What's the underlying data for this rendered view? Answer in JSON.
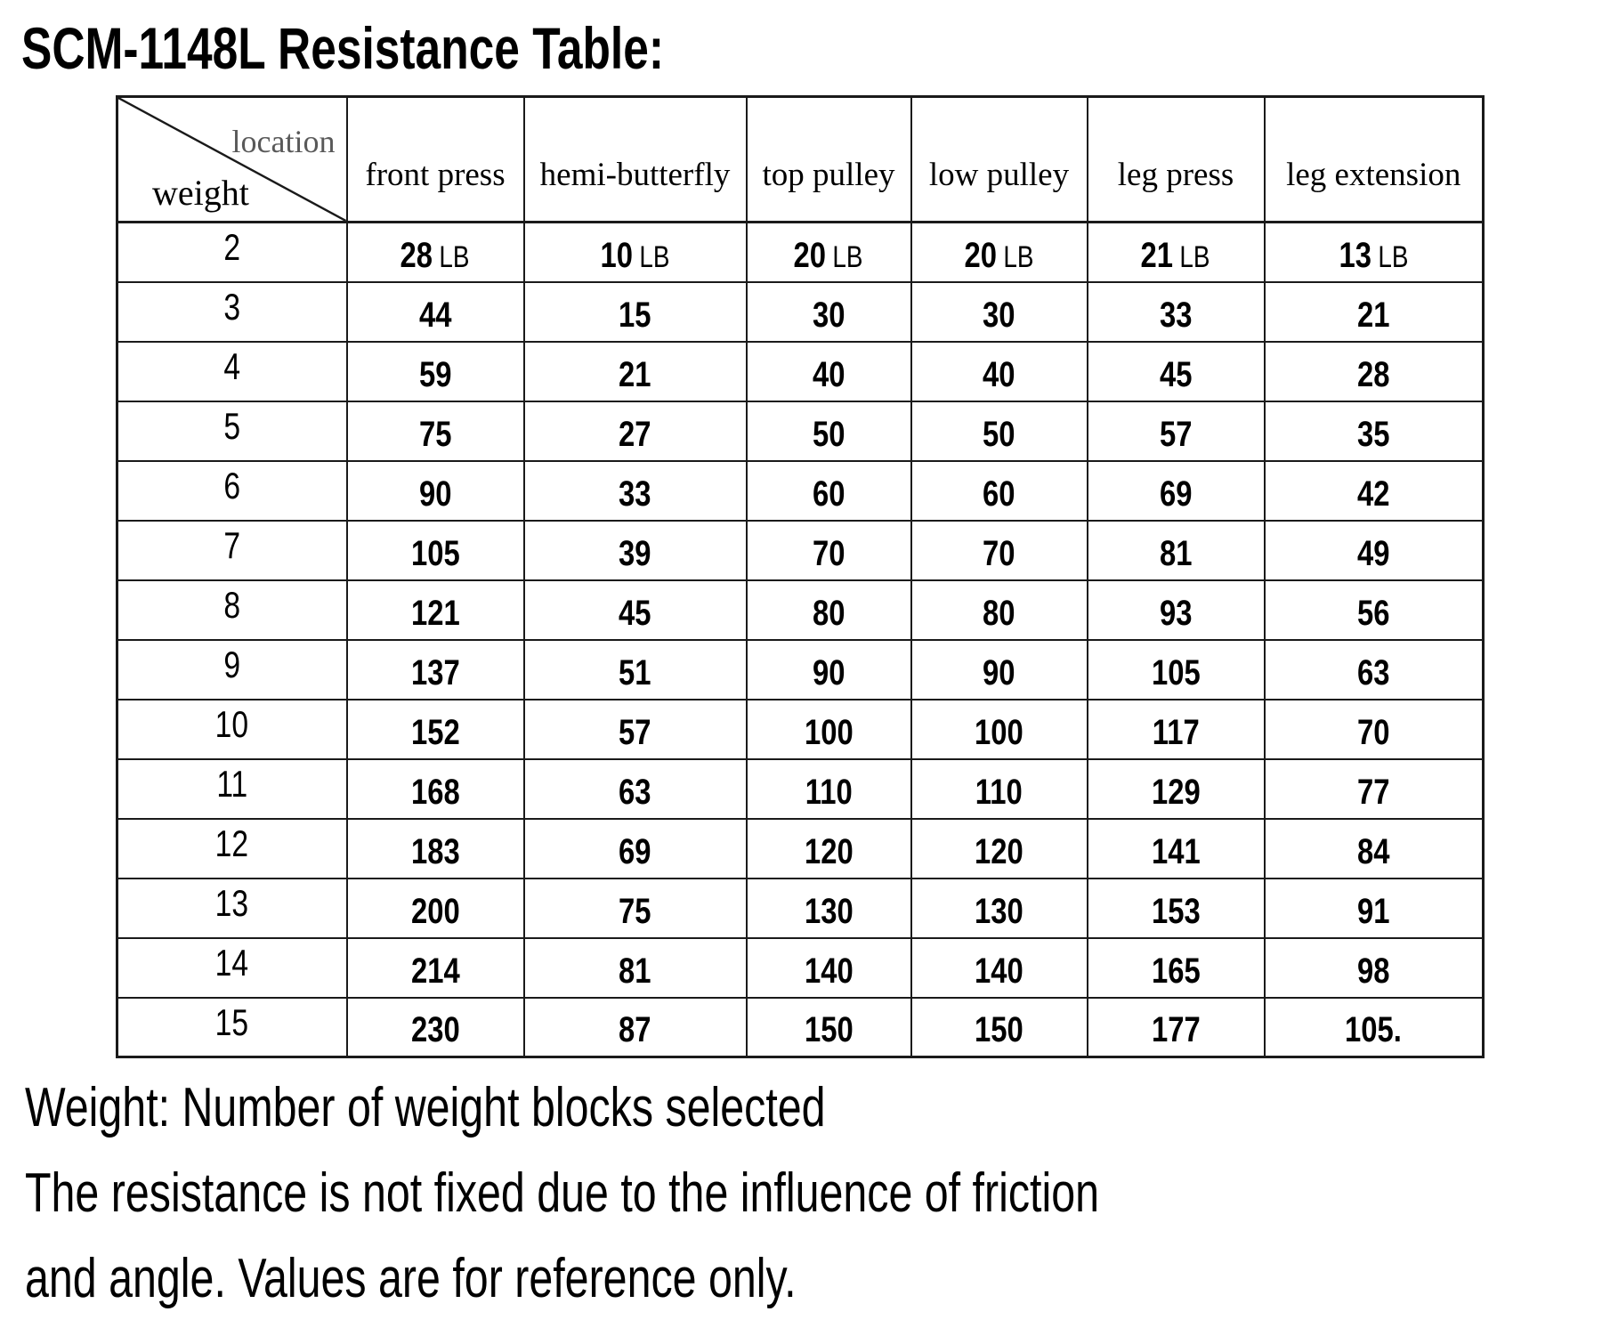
{
  "title": "SCM-1148L Resistance Table:",
  "table": {
    "corner": {
      "top_label": "location",
      "bottom_label": "weight"
    },
    "columns": [
      "front press",
      "hemi-butterfly",
      "top pulley",
      "low pulley",
      "leg press",
      "leg extension"
    ],
    "unit_label": "LB",
    "rows": [
      {
        "weight": "2",
        "show_unit": true,
        "values": [
          "28",
          "10",
          "20",
          "20",
          "21",
          "13"
        ]
      },
      {
        "weight": "3",
        "show_unit": false,
        "values": [
          "44",
          "15",
          "30",
          "30",
          "33",
          "21"
        ]
      },
      {
        "weight": "4",
        "show_unit": false,
        "values": [
          "59",
          "21",
          "40",
          "40",
          "45",
          "28"
        ]
      },
      {
        "weight": "5",
        "show_unit": false,
        "values": [
          "75",
          "27",
          "50",
          "50",
          "57",
          "35"
        ]
      },
      {
        "weight": "6",
        "show_unit": false,
        "values": [
          "90",
          "33",
          "60",
          "60",
          "69",
          "42"
        ]
      },
      {
        "weight": "7",
        "show_unit": false,
        "values": [
          "105",
          "39",
          "70",
          "70",
          "81",
          "49"
        ]
      },
      {
        "weight": "8",
        "show_unit": false,
        "values": [
          "121",
          "45",
          "80",
          "80",
          "93",
          "56"
        ]
      },
      {
        "weight": "9",
        "show_unit": false,
        "values": [
          "137",
          "51",
          "90",
          "90",
          "105",
          "63"
        ]
      },
      {
        "weight": "10",
        "show_unit": false,
        "values": [
          "152",
          "57",
          "100",
          "100",
          "117",
          "70"
        ]
      },
      {
        "weight": "11",
        "show_unit": false,
        "values": [
          "168",
          "63",
          "110",
          "110",
          "129",
          "77"
        ]
      },
      {
        "weight": "12",
        "show_unit": false,
        "values": [
          "183",
          "69",
          "120",
          "120",
          "141",
          "84"
        ]
      },
      {
        "weight": "13",
        "show_unit": false,
        "values": [
          "200",
          "75",
          "130",
          "130",
          "153",
          "91"
        ]
      },
      {
        "weight": "14",
        "show_unit": false,
        "values": [
          "214",
          "81",
          "140",
          "140",
          "165",
          "98"
        ]
      },
      {
        "weight": "15",
        "show_unit": false,
        "values": [
          "230",
          "87",
          "150",
          "150",
          "177",
          "105."
        ]
      }
    ]
  },
  "footer": {
    "line1": "Weight: Number of weight blocks selected",
    "line2": "The resistance is not fixed due to the influence of friction",
    "line3": "and angle. Values are for reference only."
  },
  "colors": {
    "text": "#000000",
    "corner_location_label": "#595959",
    "table_border": "#1a1a1a",
    "background": "#ffffff"
  }
}
